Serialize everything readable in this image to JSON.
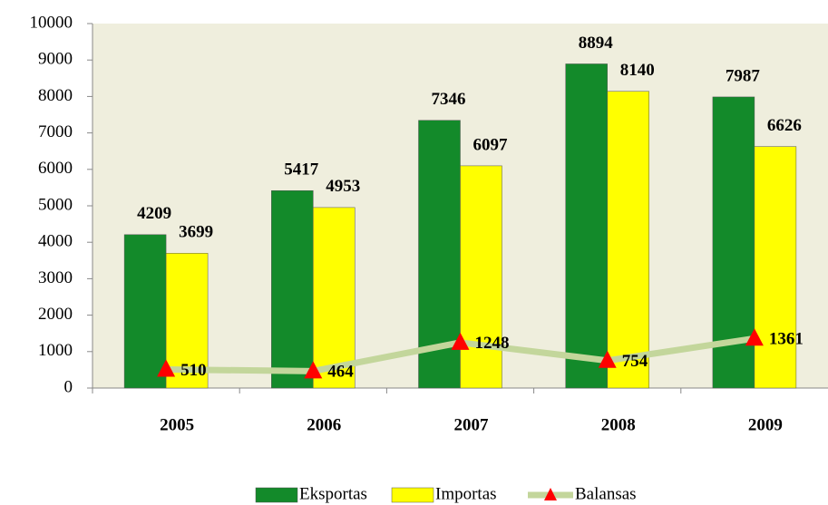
{
  "chart_data": {
    "type": "bar",
    "categories": [
      "2005",
      "2006",
      "2007",
      "2008",
      "2009"
    ],
    "series": [
      {
        "name": "Eksportas",
        "color": "#138a2a",
        "values": [
          4209,
          5417,
          7346,
          8894,
          7987
        ]
      },
      {
        "name": "Importas",
        "color": "#ffff00",
        "values": [
          3699,
          4953,
          6097,
          8140,
          6626
        ]
      },
      {
        "name": "Balansas",
        "type": "line",
        "color": "#c3d69b",
        "marker_color": "#ff0000",
        "values": [
          510,
          464,
          1248,
          754,
          1361
        ]
      }
    ],
    "ylim": [
      0,
      10000
    ],
    "yticks": [
      0,
      1000,
      2000,
      3000,
      4000,
      5000,
      6000,
      7000,
      8000,
      9000,
      10000
    ],
    "grid": false,
    "legend": "bottom"
  }
}
